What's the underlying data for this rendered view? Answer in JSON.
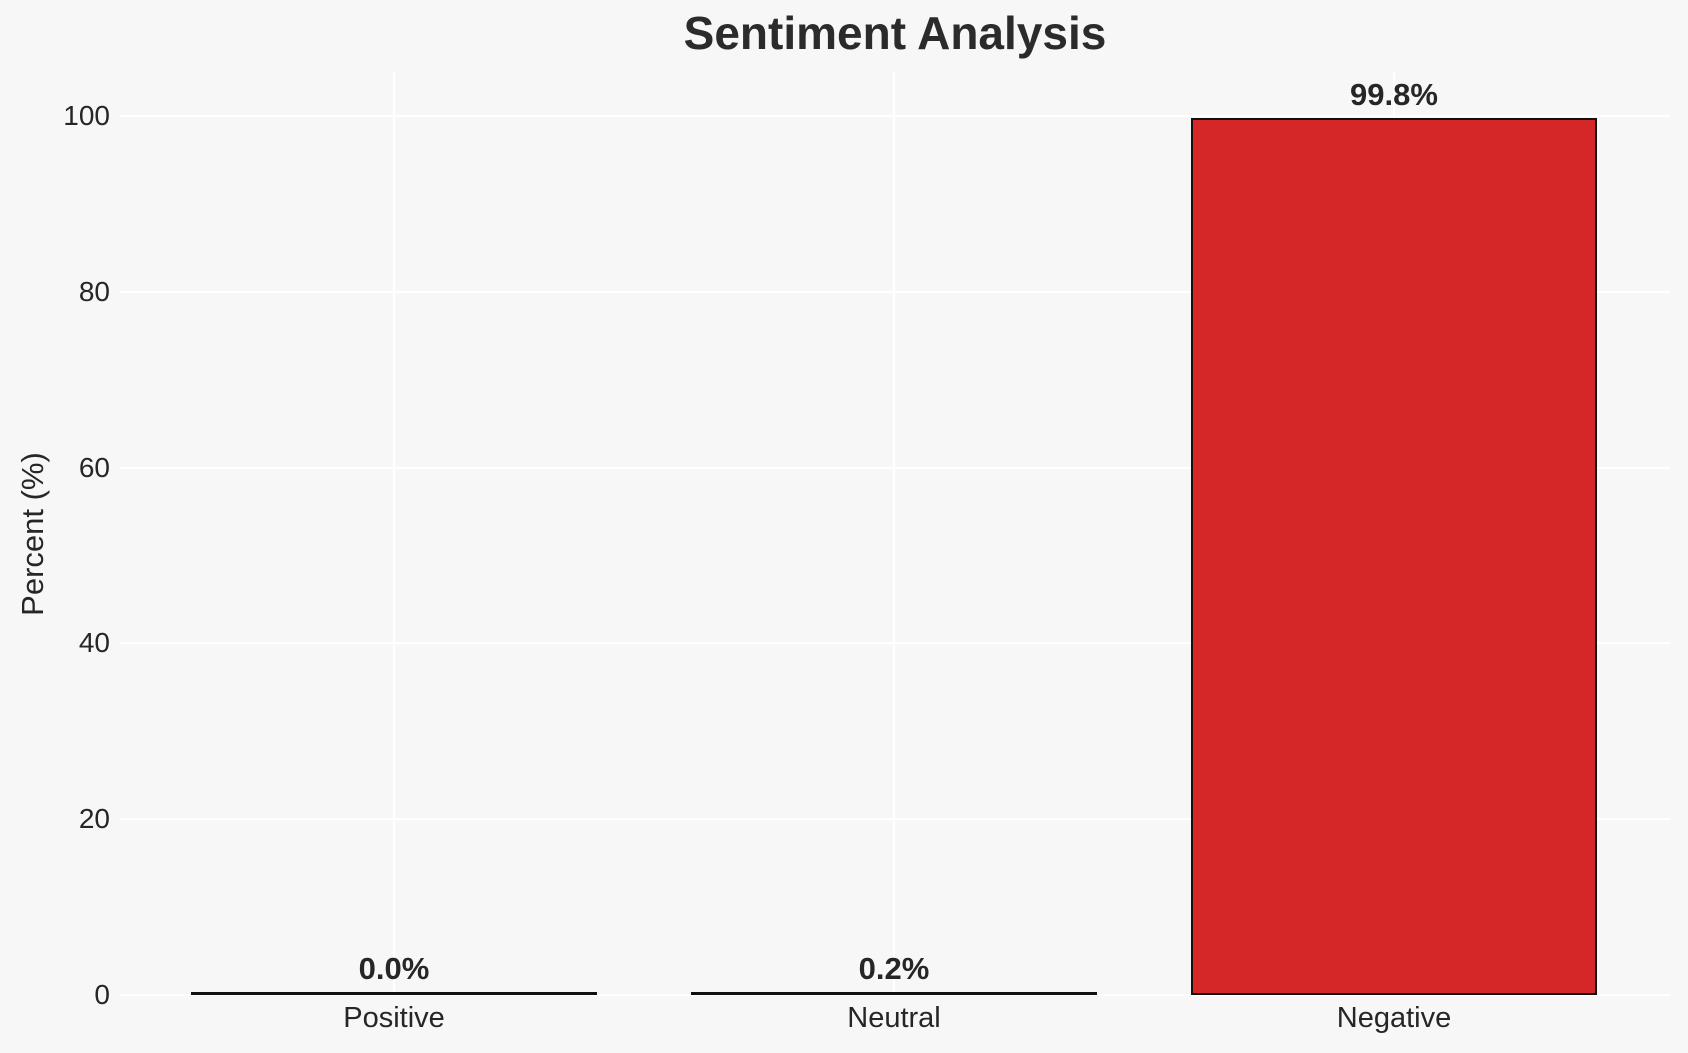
{
  "chart_data": {
    "type": "bar",
    "title": "Sentiment Analysis",
    "ylabel": "Percent (%)",
    "xlabel": "",
    "categories": [
      "Positive",
      "Neutral",
      "Negative"
    ],
    "values": [
      0.0,
      0.2,
      99.8
    ],
    "bar_labels": [
      "0.0%",
      "0.2%",
      "99.8%"
    ],
    "yticks": [
      0,
      20,
      40,
      60,
      80,
      100
    ],
    "ylim": [
      0,
      105
    ],
    "grid": true,
    "legend_visible": false,
    "bar_fill_colors": [
      null,
      null,
      "#d62728"
    ],
    "bar_edge_color": "#111111",
    "background_color": "#f7f7f7",
    "gridline_color": "#ffffff",
    "text_color": "#262626"
  }
}
